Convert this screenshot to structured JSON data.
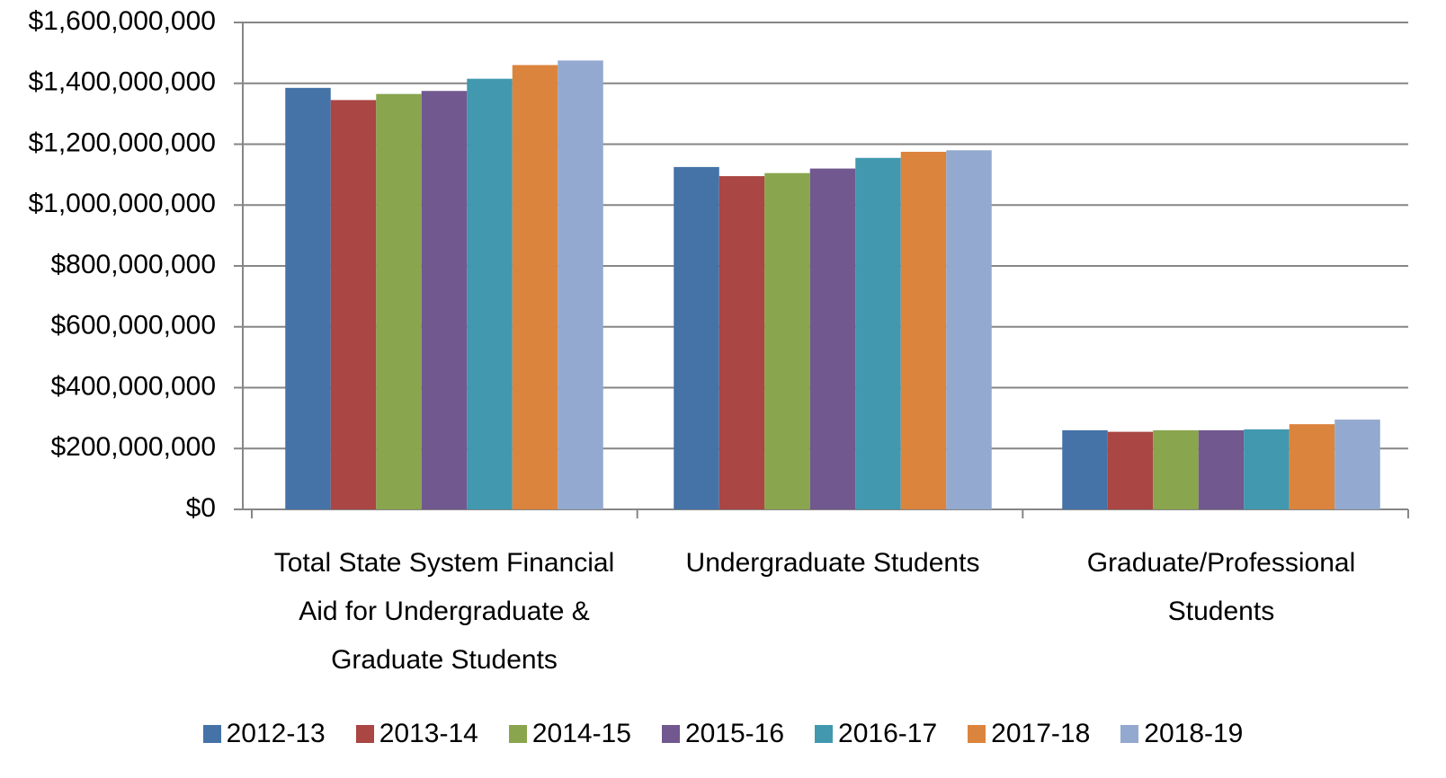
{
  "chart_data": {
    "type": "bar",
    "categories": [
      "Total State System Financial Aid for Undergraduate & Graduate Students",
      "Undergraduate Students",
      "Graduate/Professional Students"
    ],
    "series": [
      {
        "name": "2012-13",
        "color": "#4572a7",
        "values": [
          1385000000,
          1125000000,
          260000000
        ]
      },
      {
        "name": "2013-14",
        "color": "#aa4643",
        "values": [
          1345000000,
          1095000000,
          255000000
        ]
      },
      {
        "name": "2014-15",
        "color": "#89a54e",
        "values": [
          1365000000,
          1105000000,
          260000000
        ]
      },
      {
        "name": "2015-16",
        "color": "#71588f",
        "values": [
          1375000000,
          1120000000,
          260000000
        ]
      },
      {
        "name": "2016-17",
        "color": "#4198af",
        "values": [
          1415000000,
          1155000000,
          263000000
        ]
      },
      {
        "name": "2017-18",
        "color": "#db843d",
        "values": [
          1460000000,
          1175000000,
          280000000
        ]
      },
      {
        "name": "2018-19",
        "color": "#93a9cf",
        "values": [
          1475000000,
          1180000000,
          295000000
        ]
      }
    ],
    "ylim": [
      0,
      1600000000
    ],
    "yticks": [
      {
        "value": 0,
        "label": "$0"
      },
      {
        "value": 200000000,
        "label": "$200,000,000"
      },
      {
        "value": 400000000,
        "label": "$400,000,000"
      },
      {
        "value": 600000000,
        "label": "$600,000,000"
      },
      {
        "value": 800000000,
        "label": "$800,000,000"
      },
      {
        "value": 1000000000,
        "label": "$1,000,000,000"
      },
      {
        "value": 1200000000,
        "label": "$1,200,000,000"
      },
      {
        "value": 1400000000,
        "label": "$1,400,000,000"
      },
      {
        "value": 1600000000,
        "label": "$1,600,000,000"
      }
    ],
    "grid": true,
    "legend": "bottom"
  }
}
